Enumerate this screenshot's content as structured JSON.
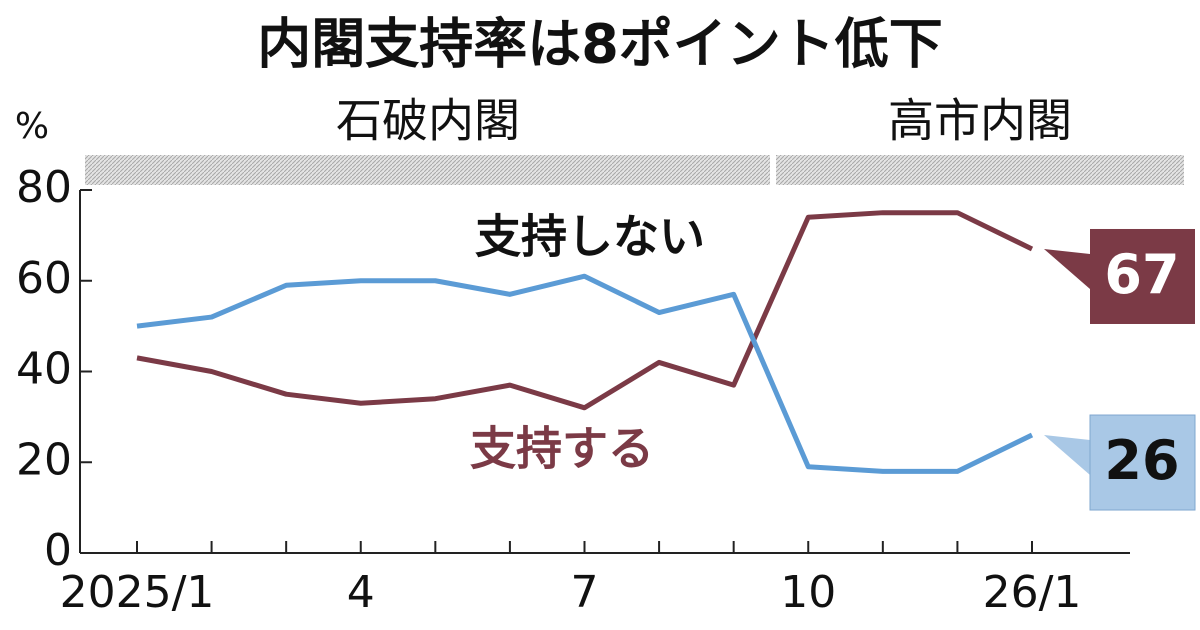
{
  "chart_data": {
    "type": "line",
    "title": "内閣支持率は8ポイント低下",
    "y_unit": "%",
    "periods": [
      "石破内閣",
      "高市内閣"
    ],
    "categories": [
      "2025/1",
      null,
      null,
      "4",
      null,
      null,
      "7",
      null,
      null,
      "10",
      null,
      null,
      "26/1"
    ],
    "series": [
      {
        "name": "支持する",
        "color": "#7b3a46",
        "values": [
          43,
          40,
          35,
          33,
          34,
          37,
          32,
          42,
          37,
          74,
          75,
          75,
          67
        ]
      },
      {
        "name": "支持しない",
        "color": "#5b9bd5",
        "values": [
          50,
          52,
          59,
          60,
          60,
          57,
          61,
          53,
          57,
          19,
          18,
          18,
          26
        ]
      }
    ],
    "ylim": [
      0,
      80
    ],
    "yticks": [
      0,
      20,
      40,
      60,
      80
    ],
    "grid": false
  }
}
